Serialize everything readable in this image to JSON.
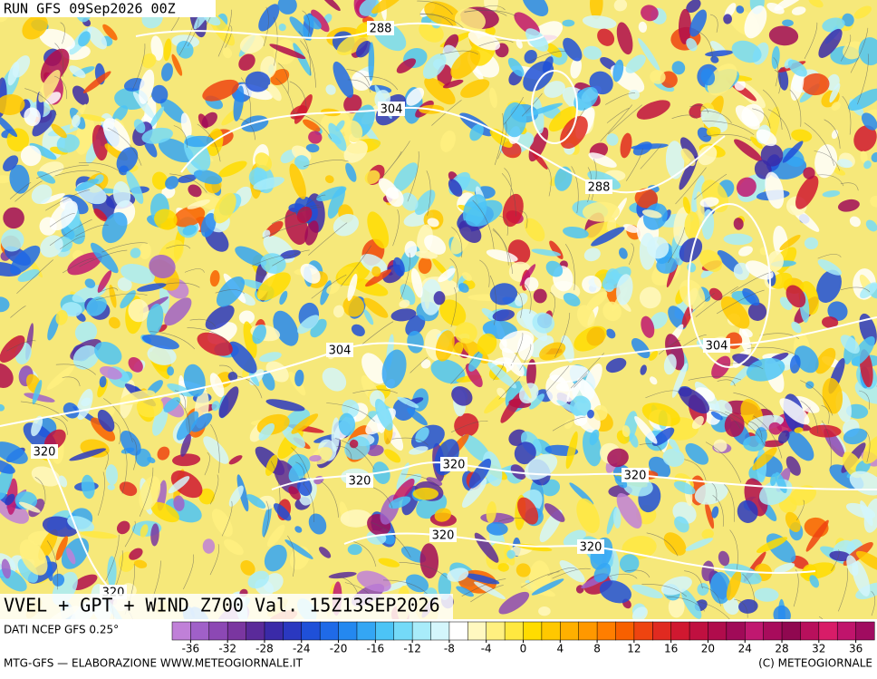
{
  "header": {
    "run": "RUN GFS 09Sep2026 00Z"
  },
  "map": {
    "contour_labels": [
      288,
      304,
      288,
      304,
      304,
      320,
      320,
      320,
      320,
      320,
      320,
      320
    ]
  },
  "title": "VVEL + GPT + WIND Z700 Val. 15Z13SEP2026",
  "colorbar": {
    "source": "DATI NCEP GFS 0.25°",
    "labels": [
      -36,
      -32,
      -28,
      -24,
      -20,
      -16,
      -12,
      -8,
      -4,
      0,
      4,
      8,
      12,
      16,
      20,
      24,
      28,
      32,
      36
    ],
    "colors": [
      "#c080d8",
      "#a060c8",
      "#8c48b4",
      "#7a36a0",
      "#5a2a9a",
      "#3a2aa8",
      "#2a38c0",
      "#1f50d8",
      "#1f6ae8",
      "#2488f0",
      "#34a6f4",
      "#4cc4f6",
      "#74daf8",
      "#a8ecfa",
      "#d4f6fc",
      "#ffffff",
      "#fff8c0",
      "#fff080",
      "#ffe840",
      "#ffdc00",
      "#ffc800",
      "#ffb000",
      "#ff9800",
      "#ff7e00",
      "#f86000",
      "#ee4410",
      "#e02a20",
      "#d01830",
      "#c01040",
      "#b00c4c",
      "#a00a58",
      "#c01870",
      "#a80c5c",
      "#900850",
      "#b8105c",
      "#d81c68",
      "#c0146c",
      "#a00c60"
    ]
  },
  "footer": {
    "left": "MTG-GFS — ELABORAZIONE WWW.METEOGIORNALE.IT",
    "right": "(C) METEOGIORNALE"
  }
}
